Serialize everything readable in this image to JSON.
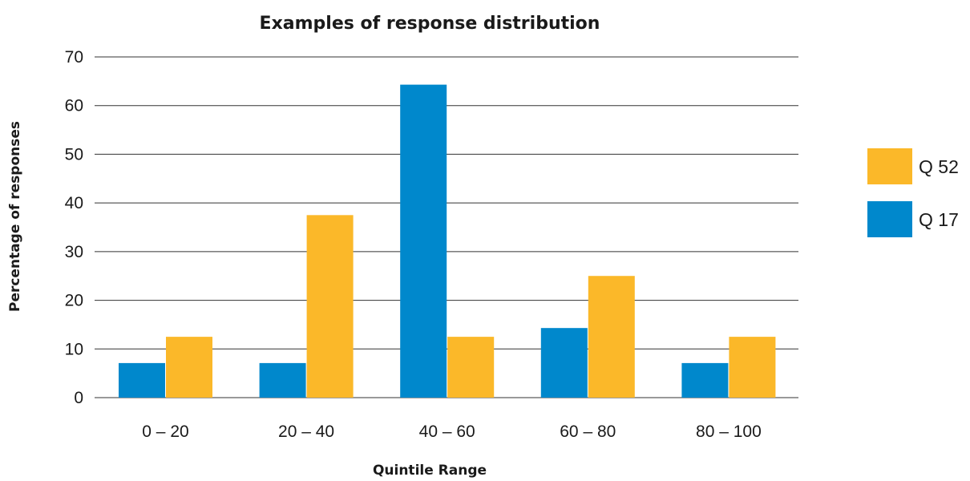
{
  "chart_data": {
    "type": "bar",
    "title": "Examples of response distribution",
    "xlabel": "Quintile Range",
    "ylabel": "Percentage of responses",
    "categories": [
      "0 – 20",
      "20 – 40",
      "40 – 60",
      "60 – 80",
      "80 – 100"
    ],
    "ylim": [
      0,
      70
    ],
    "yticks": [
      0,
      10,
      20,
      30,
      40,
      50,
      60,
      70
    ],
    "grid": true,
    "legend_position": "right",
    "series": [
      {
        "name": "Q 17",
        "color": "#0088cc",
        "values": [
          7.1,
          7.1,
          64.3,
          14.3,
          7.1
        ]
      },
      {
        "name": "Q 52",
        "color": "#fbb829",
        "values": [
          12.5,
          37.5,
          12.5,
          25.0,
          12.5
        ]
      }
    ],
    "legend_order": [
      "Q 52",
      "Q 17"
    ]
  }
}
